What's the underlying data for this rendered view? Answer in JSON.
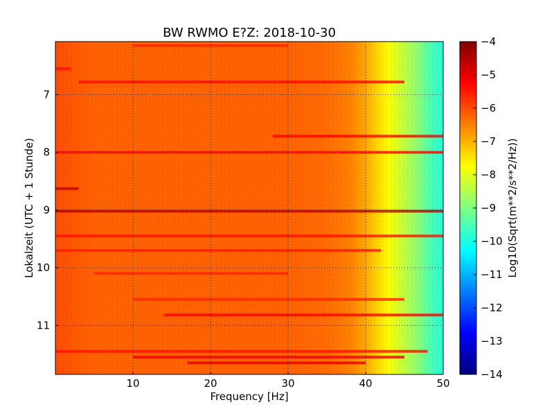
{
  "chart_data": {
    "type": "heatmap",
    "title": "BW RWMO E?Z: 2018-10-30",
    "xlabel": "Frequency [Hz]",
    "ylabel": "Lokalzeit (UTC + 1 Stunde)",
    "xlim": [
      0,
      50
    ],
    "ylim": [
      11.85,
      6.08
    ],
    "x_ticks": [
      10,
      20,
      30,
      40,
      50
    ],
    "y_ticks": [
      7,
      8,
      9,
      10,
      11
    ],
    "grid": true,
    "colormap": "jet",
    "colorbar": {
      "label": "Log10(Sqrt(m**2/s**2/Hz))",
      "range": [
        -14,
        -4
      ],
      "ticks": [
        -4,
        -5,
        -6,
        -7,
        -8,
        -9,
        -10,
        -11,
        -12,
        -13,
        -14
      ]
    },
    "frequency_profile": {
      "freq_hz": [
        0,
        5,
        10,
        20,
        30,
        35,
        38,
        40,
        41,
        42,
        43,
        44,
        45,
        46,
        47,
        48,
        49,
        50
      ],
      "level": [
        -6.0,
        -6.2,
        -6.2,
        -6.2,
        -6.2,
        -6.3,
        -6.5,
        -6.9,
        -7.2,
        -7.5,
        -7.8,
        -8.1,
        -8.4,
        -8.7,
        -9.0,
        -9.4,
        -9.7,
        -9.9
      ]
    },
    "time_bands": [
      {
        "time": 6.15,
        "level": -5.6,
        "f_start": 10,
        "f_end": 30
      },
      {
        "time": 6.55,
        "level": -5.4,
        "f_start": 0,
        "f_end": 2
      },
      {
        "time": 6.78,
        "level": -5.3,
        "f_start": 3,
        "f_end": 45
      },
      {
        "time": 7.72,
        "level": -5.2,
        "f_start": 28,
        "f_end": 50
      },
      {
        "time": 8.0,
        "level": -5.4,
        "f_start": 0,
        "f_end": 50
      },
      {
        "time": 8.63,
        "level": -4.7,
        "f_start": 0,
        "f_end": 3
      },
      {
        "time": 9.02,
        "level": -4.6,
        "f_start": 0,
        "f_end": 50
      },
      {
        "time": 9.45,
        "level": -5.4,
        "f_start": 0,
        "f_end": 50
      },
      {
        "time": 9.7,
        "level": -5.5,
        "f_start": 0,
        "f_end": 42
      },
      {
        "time": 10.1,
        "level": -5.6,
        "f_start": 5,
        "f_end": 30
      },
      {
        "time": 10.55,
        "level": -5.6,
        "f_start": 10,
        "f_end": 45
      },
      {
        "time": 10.82,
        "level": -5.2,
        "f_start": 14,
        "f_end": 50
      },
      {
        "time": 11.45,
        "level": -5.4,
        "f_start": 0,
        "f_end": 48
      },
      {
        "time": 11.55,
        "level": -5.1,
        "f_start": 10,
        "f_end": 45
      },
      {
        "time": 11.65,
        "level": -5.0,
        "f_start": 17,
        "f_end": 40
      }
    ]
  }
}
